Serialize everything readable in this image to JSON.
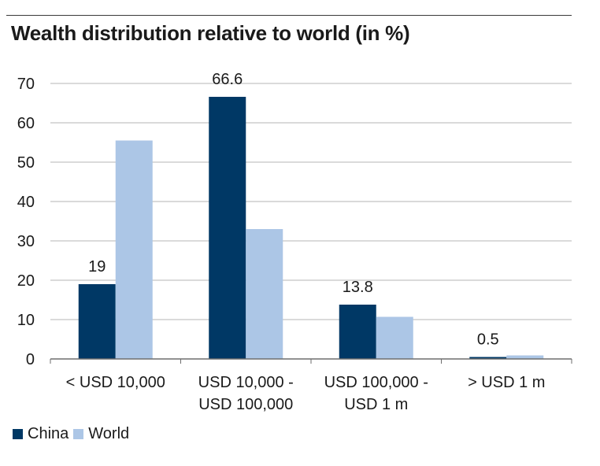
{
  "title": "Wealth distribution relative to world (in %)",
  "colors": {
    "China": "#003865",
    "World": "#acc6e6",
    "grid": "#b5b5b5",
    "axis": "#6e6e6e"
  },
  "chart_data": {
    "type": "bar",
    "title": "Wealth distribution relative to world (in %)",
    "categories": [
      [
        "< USD 10,000"
      ],
      [
        "USD 10,000 -",
        "USD 100,000"
      ],
      [
        "USD 100,000 -",
        "USD 1 m"
      ],
      [
        "> USD 1 m"
      ]
    ],
    "series": [
      {
        "name": "China",
        "values": [
          19,
          66.6,
          13.8,
          0.5
        ],
        "labels": [
          "19",
          "66.6",
          "13.8",
          "0.5"
        ]
      },
      {
        "name": "World",
        "values": [
          55.5,
          33,
          10.7,
          0.9
        ]
      }
    ],
    "ylim": [
      0,
      70
    ],
    "yticks": [
      "0",
      "10",
      "20",
      "30",
      "40",
      "50",
      "60",
      "70"
    ],
    "grid": true,
    "legend": "bottom-left"
  }
}
